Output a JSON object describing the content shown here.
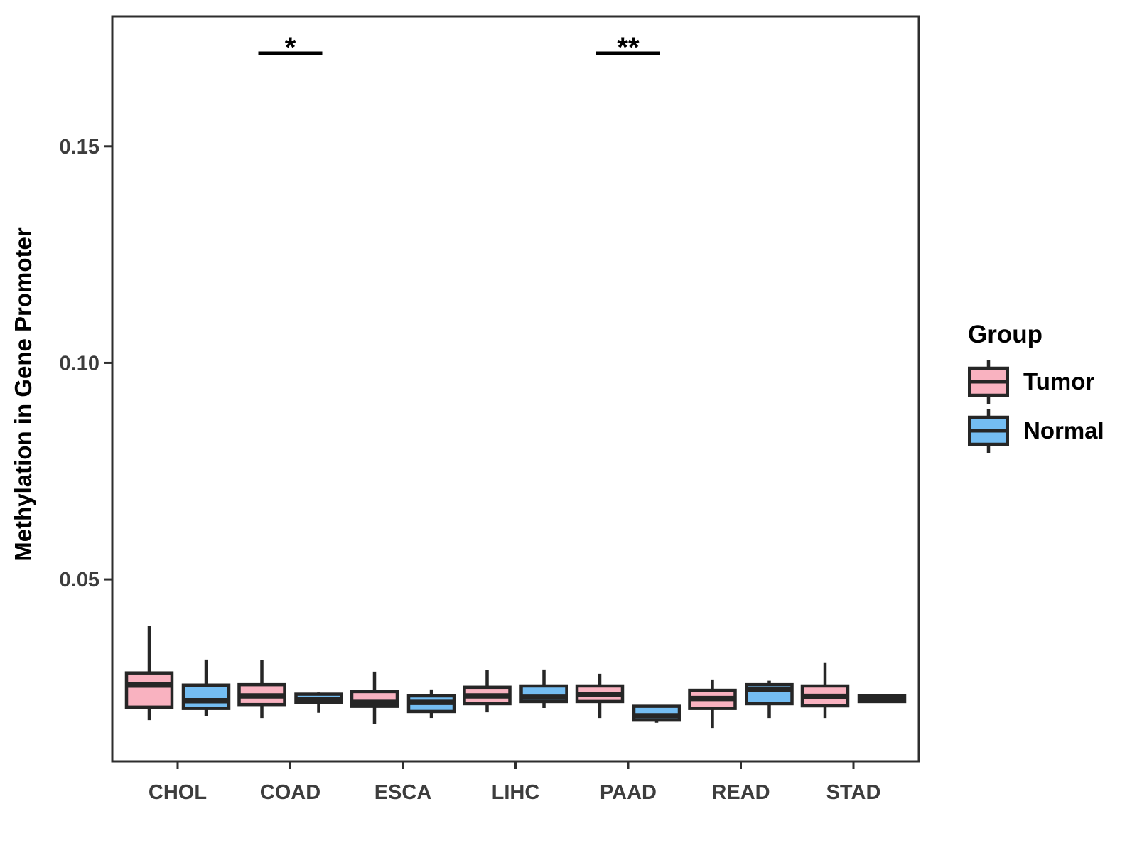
{
  "legend": {
    "title": "Group",
    "items": [
      {
        "label": "Tumor",
        "color": "#F9B2C0"
      },
      {
        "label": "Normal",
        "color": "#74BDF2"
      }
    ]
  },
  "chart_data": {
    "type": "boxplot",
    "title": "",
    "xlabel": "",
    "ylabel": "Methylation in Gene Promoter",
    "categories": [
      "CHOL",
      "COAD",
      "ESCA",
      "LIHC",
      "PAAD",
      "READ",
      "STAD"
    ],
    "groups": [
      {
        "name": "Tumor",
        "color": "#F9B2C0"
      },
      {
        "name": "Normal",
        "color": "#74BDF2"
      }
    ],
    "ylim": [
      0.008,
      0.18
    ],
    "grid": false,
    "legend_position": "right",
    "y_ticks": [
      {
        "value": 0.05,
        "label": "0.05"
      },
      {
        "value": 0.1,
        "label": "0.10"
      },
      {
        "value": 0.15,
        "label": "0.15"
      }
    ],
    "series": [
      {
        "name": "Tumor",
        "boxes": [
          {
            "category": "CHOL",
            "whisker_low": 0.0175,
            "q1": 0.0205,
            "median": 0.0256,
            "q3": 0.0284,
            "whisker_high": 0.0393
          },
          {
            "category": "COAD",
            "whisker_low": 0.018,
            "q1": 0.0211,
            "median": 0.0231,
            "q3": 0.0257,
            "whisker_high": 0.0313
          },
          {
            "category": "ESCA",
            "whisker_low": 0.0167,
            "q1": 0.0207,
            "median": 0.0216,
            "q3": 0.0241,
            "whisker_high": 0.0287
          },
          {
            "category": "LIHC",
            "whisker_low": 0.0193,
            "q1": 0.0213,
            "median": 0.0231,
            "q3": 0.0251,
            "whisker_high": 0.029
          },
          {
            "category": "PAAD",
            "whisker_low": 0.018,
            "q1": 0.0218,
            "median": 0.0234,
            "q3": 0.0254,
            "whisker_high": 0.0282
          },
          {
            "category": "READ",
            "whisker_low": 0.0157,
            "q1": 0.0202,
            "median": 0.0225,
            "q3": 0.0244,
            "whisker_high": 0.0269
          },
          {
            "category": "STAD",
            "whisker_low": 0.018,
            "q1": 0.0208,
            "median": 0.023,
            "q3": 0.0254,
            "whisker_high": 0.0307
          }
        ]
      },
      {
        "name": "Normal",
        "boxes": [
          {
            "category": "CHOL",
            "whisker_low": 0.0185,
            "q1": 0.0202,
            "median": 0.022,
            "q3": 0.0256,
            "whisker_high": 0.0315
          },
          {
            "category": "COAD",
            "whisker_low": 0.0192,
            "q1": 0.0215,
            "median": 0.0222,
            "q3": 0.0235,
            "whisker_high": 0.0239
          },
          {
            "category": "ESCA",
            "whisker_low": 0.018,
            "q1": 0.0195,
            "median": 0.0216,
            "q3": 0.0231,
            "whisker_high": 0.0246
          },
          {
            "category": "LIHC",
            "whisker_low": 0.0203,
            "q1": 0.0218,
            "median": 0.0228,
            "q3": 0.0254,
            "whisker_high": 0.0292
          },
          {
            "category": "PAAD",
            "whisker_low": 0.0169,
            "q1": 0.0175,
            "median": 0.0185,
            "q3": 0.0207,
            "whisker_high": 0.021
          },
          {
            "category": "READ",
            "whisker_low": 0.018,
            "q1": 0.0213,
            "median": 0.0246,
            "q3": 0.0257,
            "whisker_high": 0.0266
          },
          {
            "category": "STAD",
            "whisker_low": 0.0216,
            "q1": 0.0218,
            "median": 0.0224,
            "q3": 0.0231,
            "whisker_high": 0.0232
          }
        ]
      }
    ],
    "significance": [
      {
        "category": "COAD",
        "label": "*"
      },
      {
        "category": "PAAD",
        "label": "**"
      }
    ]
  }
}
